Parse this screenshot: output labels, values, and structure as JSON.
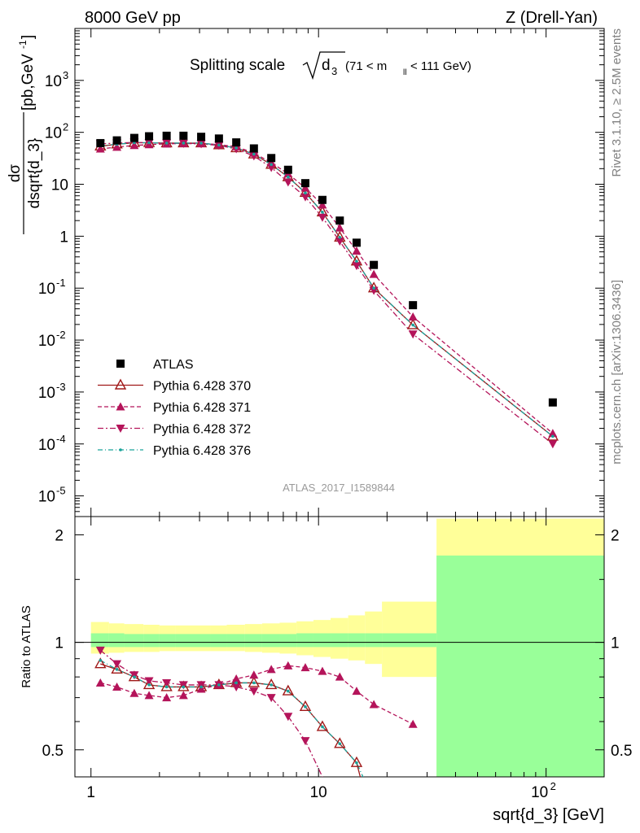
{
  "header": {
    "left": "8000 GeV pp",
    "right": "Z (Drell-Yan)"
  },
  "side_labels": {
    "rivet": "Rivet 3.1.10, ≥ 2.5M events",
    "mcplots": "mcplots.cern.ch [arXiv:1306.3436]"
  },
  "title": {
    "prefix": "Splitting scale",
    "symbol": "d",
    "subscript": "3",
    "range": "(71 < m",
    "range_sub": "ll",
    "range_end": "< 111 GeV)"
  },
  "analysis_tag": "ATLAS_2017_I1589844",
  "ylabel_main": {
    "num": "dσ",
    "den": "dsqrt{d_3}",
    "units": "[pb,GeV",
    "units_sup": "-1",
    "units_end": "]"
  },
  "ylabel_ratio": "Ratio to ATLAS",
  "xlabel": "sqrt{d_3} [GeV]",
  "legend": [
    {
      "label": "ATLAS",
      "color": "#000000",
      "marker": "square",
      "dash": ""
    },
    {
      "label": "Pythia 6.428 370",
      "color": "#a01818",
      "marker": "open-triangle",
      "dash": ""
    },
    {
      "label": "Pythia 6.428 371",
      "color": "#b4145a",
      "marker": "triangle-up",
      "dash": "5,3"
    },
    {
      "label": "Pythia 6.428 372",
      "color": "#b4145a",
      "marker": "triangle-down",
      "dash": "7,3,2,3"
    },
    {
      "label": "Pythia 6.428 376",
      "color": "#1aa39a",
      "marker": "dot",
      "dash": "6,3,1,3"
    }
  ],
  "chart_data": [
    {
      "type": "scatter",
      "panel": "main",
      "xscale": "log",
      "yscale": "log",
      "xlim": [
        0.85,
        180
      ],
      "ylim": [
        4e-06,
        10000
      ],
      "x_ticks": [
        "1",
        "10",
        "10^2"
      ],
      "y_ticks": [
        "10^-5",
        "10^-4",
        "10^-3",
        "10^-2",
        "10^-1",
        "1",
        "10",
        "10^2",
        "10^3"
      ],
      "series": [
        {
          "name": "ATLAS",
          "x": [
            1.1,
            1.3,
            1.55,
            1.8,
            2.15,
            2.55,
            3.05,
            3.65,
            4.35,
            5.2,
            6.2,
            7.35,
            8.75,
            10.4,
            12.4,
            14.7,
            17.5,
            26,
            107
          ],
          "y": [
            62,
            70,
            78,
            84,
            86,
            86,
            82,
            76,
            64,
            49,
            32,
            19,
            10.5,
            5,
            2,
            0.75,
            0.28,
            0.047,
            0.00063
          ]
        },
        {
          "name": "Pythia 6.428 370",
          "x": [
            1.1,
            1.3,
            1.55,
            1.8,
            2.15,
            2.55,
            3.05,
            3.65,
            4.35,
            5.2,
            6.2,
            7.35,
            8.75,
            10.4,
            12.4,
            14.7,
            17.5,
            26,
            107
          ],
          "y": [
            54,
            59,
            63,
            63,
            62,
            62,
            62,
            57,
            50,
            38,
            24,
            13.8,
            6.9,
            2.9,
            0.95,
            0.33,
            0.1,
            0.0195,
            0.00014
          ]
        },
        {
          "name": "Pythia 6.428 371",
          "x": [
            1.1,
            1.3,
            1.55,
            1.8,
            2.15,
            2.55,
            3.05,
            3.65,
            4.35,
            5.2,
            6.2,
            7.35,
            8.75,
            10.4,
            12.4,
            14.7,
            17.5,
            26,
            107
          ],
          "y": [
            48,
            52,
            56,
            58,
            60,
            61,
            61,
            58,
            53,
            40,
            26,
            16,
            8.5,
            4,
            1.45,
            0.52,
            0.185,
            0.028,
            0.00016
          ]
        },
        {
          "name": "Pythia 6.428 372",
          "x": [
            1.1,
            1.3,
            1.55,
            1.8,
            2.15,
            2.55,
            3.05,
            3.65,
            4.35,
            5.2,
            6.2,
            7.35,
            8.75,
            10.4,
            12.4,
            14.7,
            17.5,
            26,
            107
          ],
          "y": [
            60,
            62,
            64,
            63,
            62,
            61,
            60,
            56,
            48,
            35,
            21,
            11,
            5.7,
            2.3,
            0.8,
            0.27,
            0.09,
            0.013,
            0.0001
          ]
        },
        {
          "name": "Pythia 6.428 376",
          "x": [
            1.1,
            1.3,
            1.55,
            1.8,
            2.15,
            2.55,
            3.05,
            3.65,
            4.35,
            5.2,
            6.2,
            7.35,
            8.75,
            10.4,
            12.4,
            14.7,
            17.5,
            26,
            107
          ],
          "y": [
            55,
            59,
            63,
            63,
            62,
            62,
            62,
            57,
            50,
            38,
            24,
            13.8,
            6.8,
            2.9,
            0.95,
            0.33,
            0.1,
            0.0195,
            0.00014
          ]
        }
      ]
    },
    {
      "type": "line",
      "panel": "ratio",
      "xscale": "log",
      "xlim": [
        0.85,
        180
      ],
      "ylim": [
        0.42,
        2.25
      ],
      "y_ticks": [
        "0.5",
        "1",
        "2"
      ],
      "bin_edges": [
        1.0,
        1.2,
        1.4,
        1.7,
        2.0,
        2.35,
        2.75,
        3.35,
        3.95,
        4.75,
        5.65,
        6.75,
        8.0,
        9.5,
        11.3,
        13.5,
        16.0,
        19.0,
        33.0,
        180
      ],
      "band_outer": [
        [
          0.93,
          1.14
        ],
        [
          0.935,
          1.13
        ],
        [
          0.94,
          1.125
        ],
        [
          0.94,
          1.12
        ],
        [
          0.945,
          1.115
        ],
        [
          0.945,
          1.115
        ],
        [
          0.945,
          1.115
        ],
        [
          0.945,
          1.115
        ],
        [
          0.945,
          1.12
        ],
        [
          0.94,
          1.125
        ],
        [
          0.935,
          1.13
        ],
        [
          0.93,
          1.135
        ],
        [
          0.92,
          1.145
        ],
        [
          0.91,
          1.155
        ],
        [
          0.9,
          1.17
        ],
        [
          0.89,
          1.19
        ],
        [
          0.87,
          1.22
        ],
        [
          0.8,
          1.3
        ],
        [
          0.3,
          2.22
        ]
      ],
      "band_inner": [
        [
          0.97,
          1.06
        ],
        [
          0.97,
          1.06
        ],
        [
          0.97,
          1.055
        ],
        [
          0.97,
          1.055
        ],
        [
          0.97,
          1.055
        ],
        [
          0.97,
          1.055
        ],
        [
          0.97,
          1.055
        ],
        [
          0.97,
          1.055
        ],
        [
          0.97,
          1.055
        ],
        [
          0.97,
          1.055
        ],
        [
          0.97,
          1.055
        ],
        [
          0.97,
          1.055
        ],
        [
          0.97,
          1.06
        ],
        [
          0.97,
          1.06
        ],
        [
          0.97,
          1.06
        ],
        [
          0.97,
          1.06
        ],
        [
          0.97,
          1.06
        ],
        [
          0.97,
          1.06
        ],
        [
          0.3,
          1.75
        ]
      ],
      "series": [
        {
          "name": "Pythia 6.428 370",
          "x": [
            1.1,
            1.3,
            1.55,
            1.8,
            2.15,
            2.55,
            3.05,
            3.65,
            4.35,
            5.2,
            6.2,
            7.35,
            8.75,
            10.4,
            12.4,
            14.7,
            17.5
          ],
          "y": [
            0.87,
            0.84,
            0.8,
            0.76,
            0.75,
            0.75,
            0.75,
            0.76,
            0.77,
            0.77,
            0.76,
            0.73,
            0.66,
            0.58,
            0.52,
            0.46,
            0.3
          ]
        },
        {
          "name": "Pythia 6.428 371",
          "x": [
            1.1,
            1.3,
            1.55,
            1.8,
            2.15,
            2.55,
            3.05,
            3.65,
            4.35,
            5.2,
            6.2,
            7.35,
            8.75,
            10.4,
            12.4,
            14.7,
            17.5,
            26
          ],
          "y": [
            0.77,
            0.75,
            0.72,
            0.71,
            0.7,
            0.71,
            0.74,
            0.76,
            0.79,
            0.81,
            0.84,
            0.86,
            0.85,
            0.83,
            0.8,
            0.73,
            0.67,
            0.59
          ]
        },
        {
          "name": "Pythia 6.428 372",
          "x": [
            1.1,
            1.3,
            1.55,
            1.8,
            2.15,
            2.55,
            3.05,
            3.65,
            4.35,
            5.2,
            6.2,
            7.35,
            8.75,
            10.4,
            12.4
          ],
          "y": [
            0.95,
            0.87,
            0.81,
            0.78,
            0.77,
            0.76,
            0.76,
            0.76,
            0.75,
            0.73,
            0.7,
            0.62,
            0.53,
            0.42,
            0.35
          ]
        },
        {
          "name": "Pythia 6.428 376",
          "x": [
            1.1,
            1.3,
            1.55,
            1.8,
            2.15,
            2.55,
            3.05,
            3.65,
            4.35,
            5.2,
            6.2,
            7.35,
            8.75,
            10.4,
            12.4,
            14.7,
            17.5
          ],
          "y": [
            0.89,
            0.84,
            0.8,
            0.76,
            0.75,
            0.75,
            0.75,
            0.76,
            0.77,
            0.77,
            0.76,
            0.73,
            0.66,
            0.58,
            0.52,
            0.46,
            0.36
          ]
        }
      ]
    }
  ]
}
